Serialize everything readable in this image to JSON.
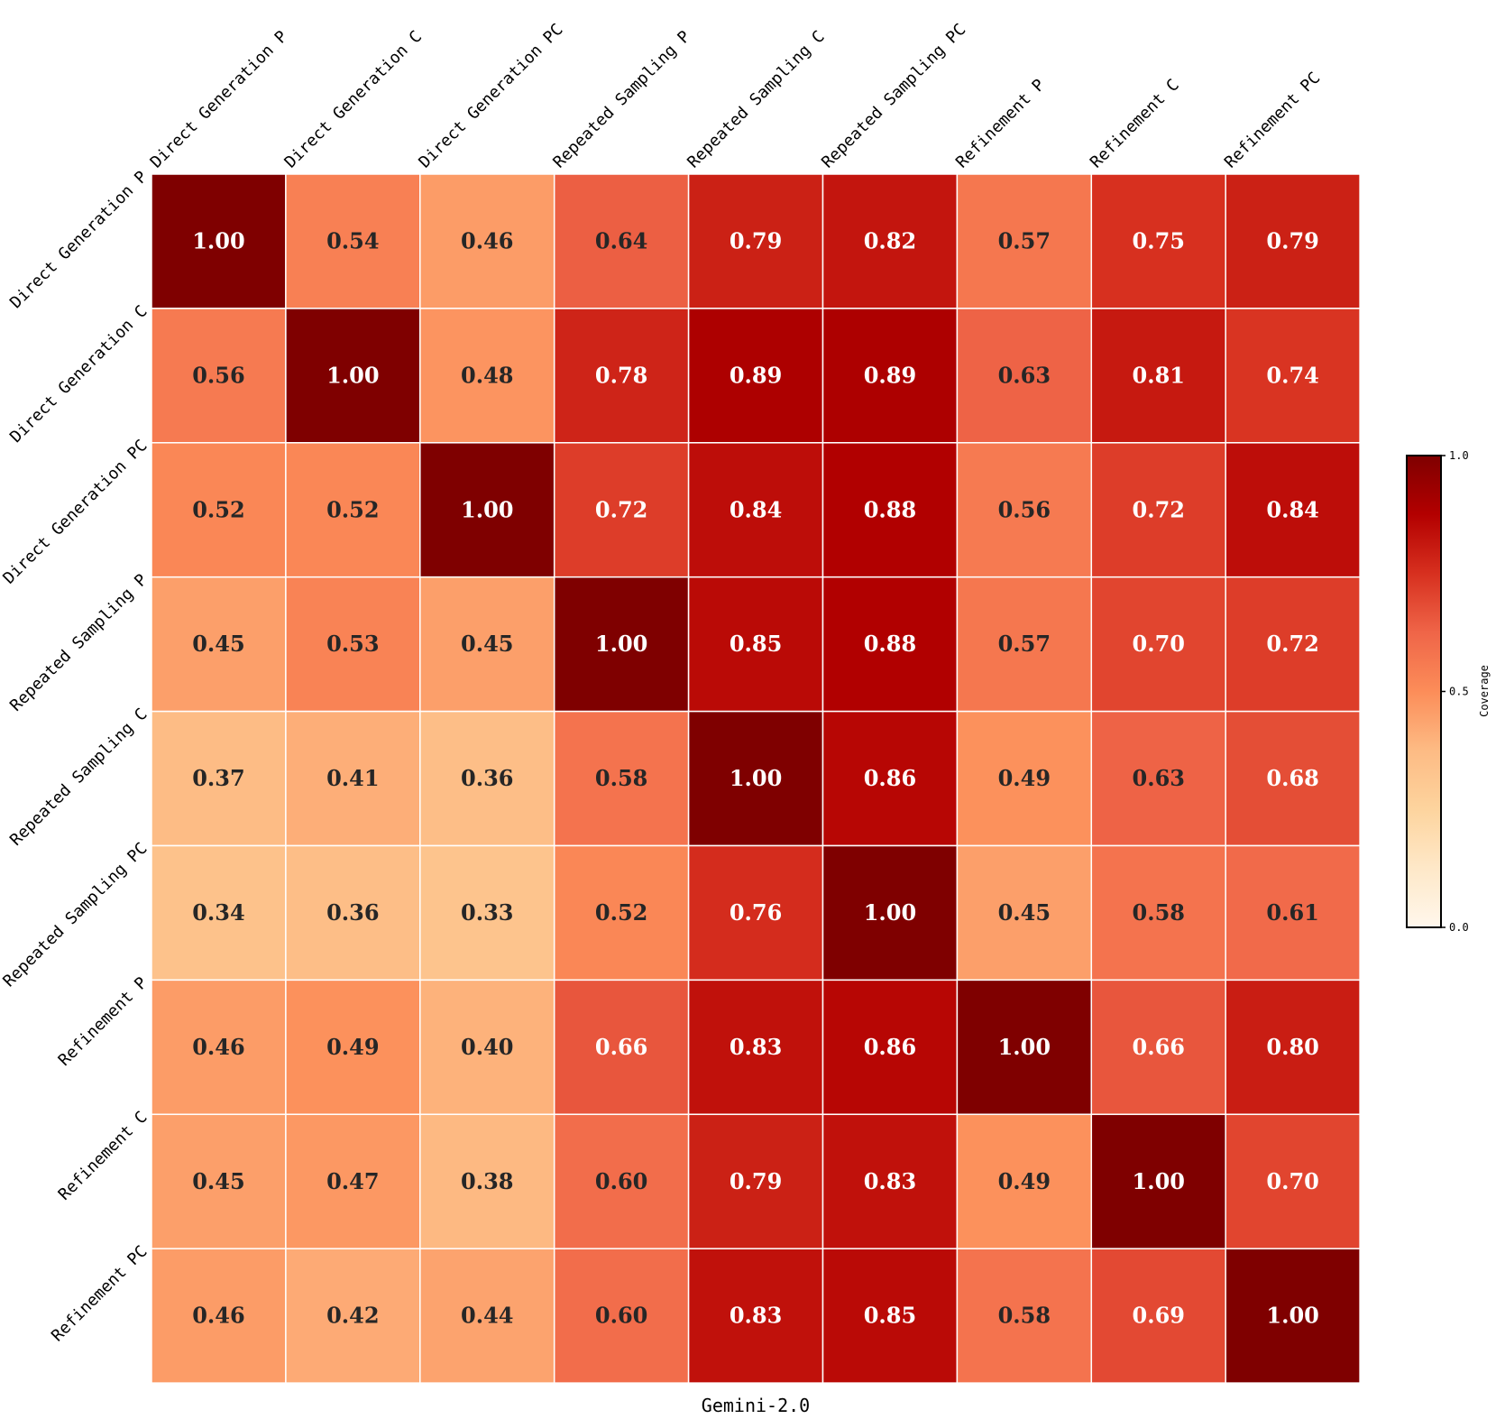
{
  "chart_data": {
    "type": "heatmap",
    "title": "",
    "xlabel": "Gemini-2.0",
    "ylabel": "",
    "row_labels": [
      "Direct Generation P",
      "Direct Generation C",
      "Direct Generation PC",
      "Repeated Sampling P",
      "Repeated Sampling C",
      "Repeated Sampling PC",
      "Refinement P",
      "Refinement C",
      "Refinement PC"
    ],
    "col_labels": [
      "Direct Generation P",
      "Direct Generation C",
      "Direct Generation PC",
      "Repeated Sampling P",
      "Repeated Sampling C",
      "Repeated Sampling PC",
      "Refinement P",
      "Refinement C",
      "Refinement PC"
    ],
    "values": [
      [
        1.0,
        0.54,
        0.46,
        0.64,
        0.79,
        0.82,
        0.57,
        0.75,
        0.79
      ],
      [
        0.56,
        1.0,
        0.48,
        0.78,
        0.89,
        0.89,
        0.63,
        0.81,
        0.74
      ],
      [
        0.52,
        0.52,
        1.0,
        0.72,
        0.84,
        0.88,
        0.56,
        0.72,
        0.84
      ],
      [
        0.45,
        0.53,
        0.45,
        1.0,
        0.85,
        0.88,
        0.57,
        0.7,
        0.72
      ],
      [
        0.37,
        0.41,
        0.36,
        0.58,
        1.0,
        0.86,
        0.49,
        0.63,
        0.68
      ],
      [
        0.34,
        0.36,
        0.33,
        0.52,
        0.76,
        1.0,
        0.45,
        0.58,
        0.61
      ],
      [
        0.46,
        0.49,
        0.4,
        0.66,
        0.83,
        0.86,
        1.0,
        0.66,
        0.8
      ],
      [
        0.45,
        0.47,
        0.38,
        0.6,
        0.79,
        0.83,
        0.49,
        1.0,
        0.7
      ],
      [
        0.46,
        0.42,
        0.44,
        0.6,
        0.83,
        0.85,
        0.58,
        0.69,
        1.0
      ]
    ],
    "value_format": "0.00",
    "colormap": "OrRd",
    "vmin": 0.0,
    "vmax": 1.0,
    "colorbar": {
      "label": "Coverage",
      "ticks": [
        0.0,
        0.5,
        1.0
      ],
      "tick_labels": [
        "0.0",
        "0.5",
        "1.0"
      ]
    },
    "colors": {
      "light_text": "#ffffff",
      "dark_text": "#262626",
      "grid_line": "#ffffff"
    }
  }
}
